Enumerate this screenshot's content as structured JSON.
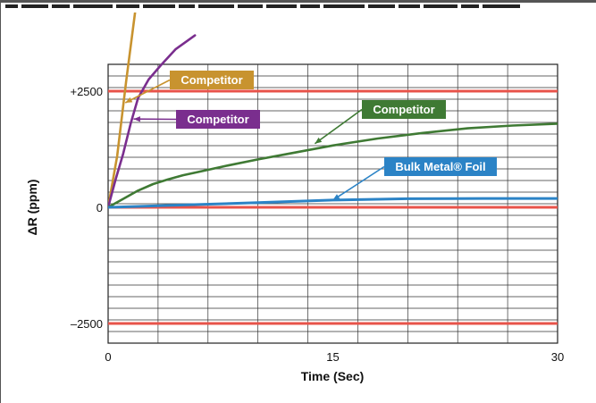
{
  "chart_data": {
    "type": "line",
    "xlabel": "Time (Sec)",
    "ylabel": "ΔR (ppm)",
    "xlim": [
      0,
      30
    ],
    "ylim": [
      -3000,
      3100
    ],
    "x_ticks": [
      {
        "value": 0,
        "label": "0"
      },
      {
        "value": 15,
        "label": "15"
      },
      {
        "value": 30,
        "label": "30"
      }
    ],
    "y_ticks": [
      {
        "value": 2500,
        "label": "+2500"
      },
      {
        "value": 0,
        "label": "0"
      },
      {
        "value": -2500,
        "label": "–2500"
      }
    ],
    "reference_lines": [
      {
        "value": 2500,
        "color": "#e8534a"
      },
      {
        "value": 0,
        "color": "#e8534a"
      },
      {
        "value": -2500,
        "color": "#e8534a"
      }
    ],
    "grid": true,
    "series": [
      {
        "color": "#c8932f",
        "x": [
          0,
          0.6,
          1.2,
          1.8
        ],
        "y": [
          0,
          1100,
          2700,
          4200
        ]
      },
      {
        "color": "#7a2e8e",
        "x": [
          0,
          0.5,
          1,
          1.5,
          2,
          2.7,
          3.5,
          4.5,
          5.8
        ],
        "y": [
          0,
          600,
          1150,
          1800,
          2350,
          2750,
          3050,
          3400,
          3700
        ]
      },
      {
        "color": "#3f7a34",
        "x": [
          0,
          1,
          2,
          3,
          4,
          5,
          6,
          8,
          10,
          12,
          15,
          18,
          21,
          24,
          27,
          30
        ],
        "y": [
          0,
          180,
          360,
          500,
          600,
          690,
          760,
          900,
          1030,
          1150,
          1330,
          1480,
          1600,
          1700,
          1760,
          1800
        ]
      },
      {
        "color": "#2b83c6",
        "x": [
          0,
          5,
          10,
          15,
          20,
          25,
          30
        ],
        "y": [
          0,
          50,
          100,
          155,
          185,
          190,
          190
        ]
      }
    ],
    "annotations": [
      {
        "text": "Competitor",
        "color": "#c8932f",
        "series": 0,
        "point": [
          1.15,
          2250
        ],
        "side": "right"
      },
      {
        "text": "Competitor",
        "color": "#7a2e8e",
        "series": 1,
        "point": [
          1.7,
          1900
        ],
        "side": "right"
      },
      {
        "text": "Competitor",
        "color": "#3f7a34",
        "series": 2,
        "point": [
          13.8,
          1370
        ],
        "side": "right"
      },
      {
        "text": "Bulk Metal® Foil",
        "color": "#2b83c6",
        "series": 3,
        "point": [
          15,
          155
        ],
        "side": "right"
      }
    ]
  }
}
